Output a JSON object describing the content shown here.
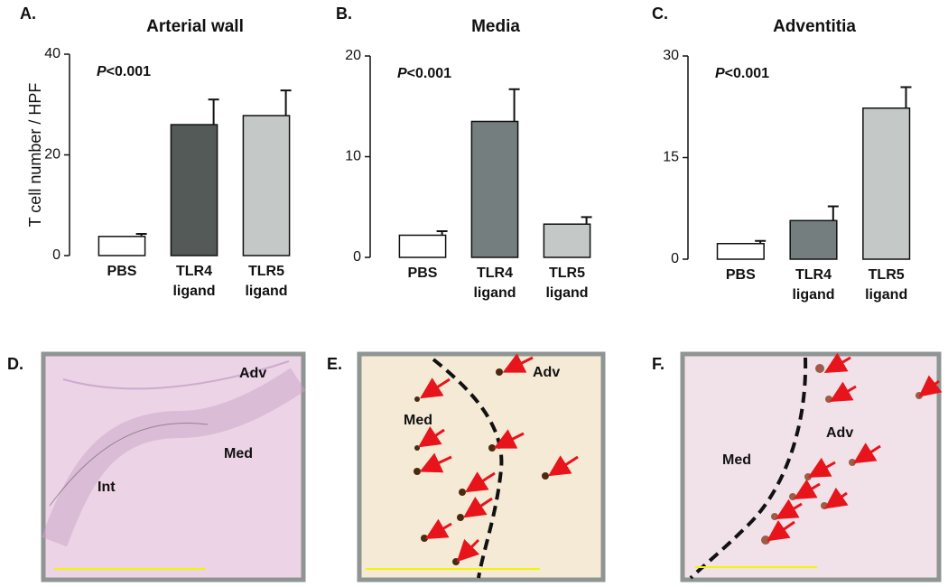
{
  "chart_data": [
    {
      "type": "bar",
      "panel_label": "A.",
      "title": "Arterial wall",
      "ylabel": "T cell number / HPF",
      "annotation_italic": "P",
      "annotation": "<0.001",
      "categories": [
        [
          "PBS"
        ],
        [
          "TLR4",
          "ligand"
        ],
        [
          "TLR5",
          "ligand"
        ]
      ],
      "values": [
        3.8,
        26,
        27.8
      ],
      "errors": [
        0.5,
        5,
        5
      ],
      "colors": [
        "#ffffff",
        "#545a58",
        "#c4c9c8"
      ],
      "ylim": [
        0,
        40
      ],
      "yticks": [
        0,
        20,
        40
      ]
    },
    {
      "type": "bar",
      "panel_label": "B.",
      "title": "Media",
      "annotation_italic": "P",
      "annotation": "<0.001",
      "categories": [
        [
          "PBS"
        ],
        [
          "TLR4",
          "ligand"
        ],
        [
          "TLR5",
          "ligand"
        ]
      ],
      "values": [
        2.2,
        13.5,
        3.3
      ],
      "errors": [
        0.4,
        3.2,
        0.7
      ],
      "colors": [
        "#ffffff",
        "#747e7e",
        "#c4c9c8"
      ],
      "ylim": [
        0,
        20
      ],
      "yticks": [
        0,
        10,
        20
      ]
    },
    {
      "type": "bar",
      "panel_label": "C.",
      "title": "Adventitia",
      "annotation_italic": "P",
      "annotation": "<0.001",
      "categories": [
        [
          "PBS"
        ],
        [
          "TLR4",
          "ligand"
        ],
        [
          "TLR5",
          "ligand"
        ]
      ],
      "values": [
        2.3,
        5.7,
        22.3
      ],
      "errors": [
        0.4,
        2.1,
        3.1
      ],
      "colors": [
        "#ffffff",
        "#747e7e",
        "#c4c9c8"
      ],
      "ylim": [
        0,
        30
      ],
      "yticks": [
        0,
        15,
        30
      ]
    }
  ],
  "micrographs": [
    {
      "panel_label": "D.",
      "labels": [
        "Adv",
        "Med",
        "Int"
      ]
    },
    {
      "panel_label": "E.",
      "labels": [
        "Adv",
        "Med"
      ]
    },
    {
      "panel_label": "F.",
      "labels": [
        "Med",
        "Adv"
      ]
    }
  ]
}
